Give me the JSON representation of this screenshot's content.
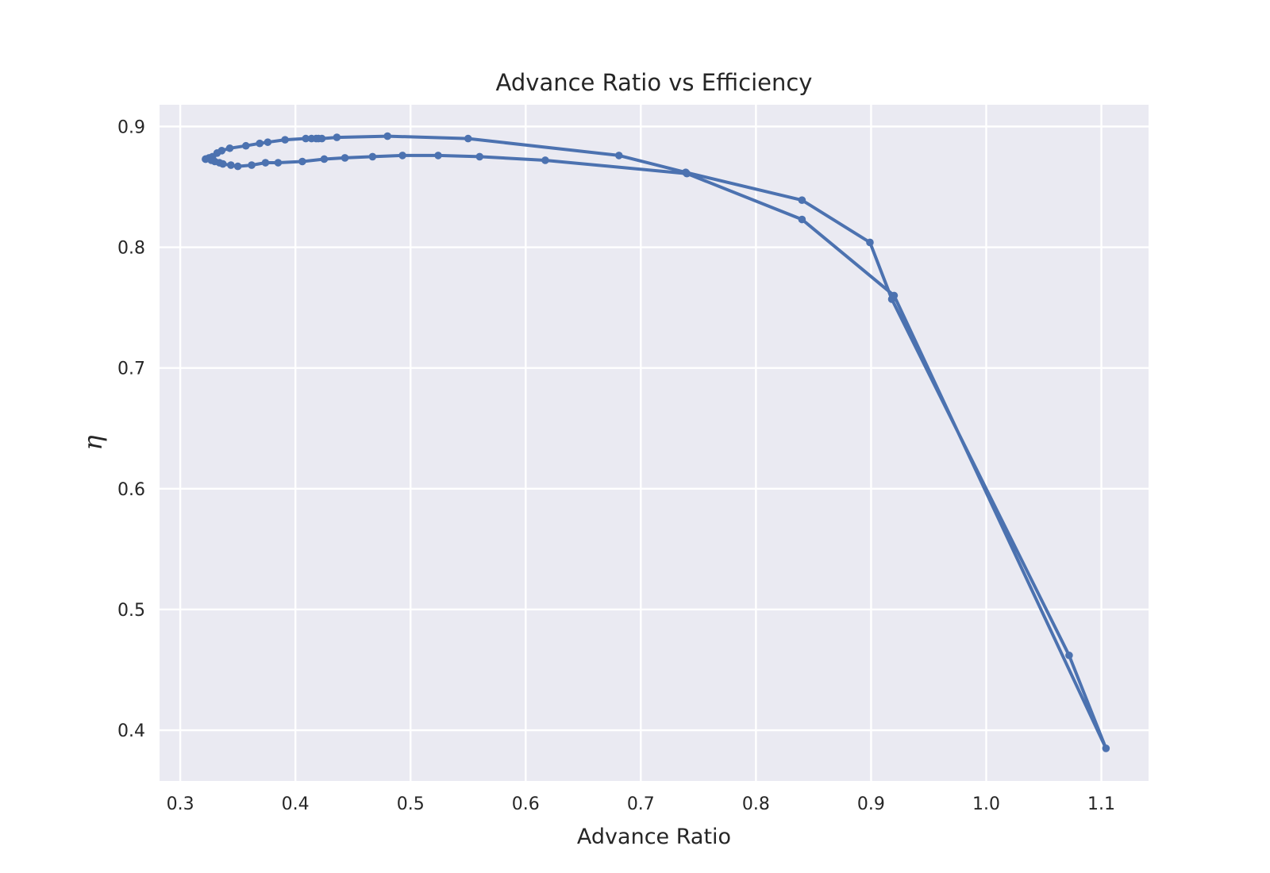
{
  "chart_data": {
    "type": "line",
    "title": "Advance Ratio vs Efficiency",
    "xlabel": "Advance Ratio",
    "ylabel": "η",
    "xlim": [
      0.282,
      1.141
    ],
    "ylim": [
      0.358,
      0.918
    ],
    "xticks": [
      0.3,
      0.4,
      0.5,
      0.6,
      0.7,
      0.8,
      0.9,
      1.0,
      1.1
    ],
    "xtick_labels": [
      "0.3",
      "0.4",
      "0.5",
      "0.6",
      "0.7",
      "0.8",
      "0.9",
      "1.0",
      "1.1"
    ],
    "yticks": [
      0.4,
      0.5,
      0.6,
      0.7,
      0.8,
      0.9
    ],
    "ytick_labels": [
      "0.4",
      "0.5",
      "0.6",
      "0.7",
      "0.8",
      "0.9"
    ],
    "grid": true,
    "style": {
      "background": "#eaeaf2",
      "grid_color": "#ffffff",
      "line_color": "#4c72b0"
    },
    "series": [
      {
        "x": [
          0.322,
          0.325,
          0.328,
          0.332,
          0.336,
          0.343,
          0.357,
          0.369,
          0.376,
          0.391,
          0.409,
          0.414,
          0.418,
          0.42,
          0.423,
          0.436,
          0.48,
          0.55,
          0.681,
          0.739,
          0.84,
          0.899,
          0.918,
          1.072,
          1.104,
          0.92,
          0.84,
          0.74,
          0.617,
          0.56,
          0.524,
          0.493,
          0.467,
          0.443,
          0.425,
          0.406,
          0.385,
          0.374,
          0.362,
          0.35,
          0.344,
          0.337,
          0.334,
          0.33,
          0.327,
          0.322
        ],
        "y": [
          0.873,
          0.874,
          0.875,
          0.878,
          0.88,
          0.882,
          0.884,
          0.886,
          0.887,
          0.889,
          0.89,
          0.89,
          0.89,
          0.89,
          0.89,
          0.891,
          0.892,
          0.89,
          0.876,
          0.862,
          0.839,
          0.804,
          0.757,
          0.462,
          0.385,
          0.76,
          0.823,
          0.861,
          0.872,
          0.875,
          0.876,
          0.876,
          0.875,
          0.874,
          0.873,
          0.871,
          0.87,
          0.87,
          0.868,
          0.867,
          0.868,
          0.869,
          0.87,
          0.871,
          0.872,
          0.873
        ]
      }
    ]
  }
}
